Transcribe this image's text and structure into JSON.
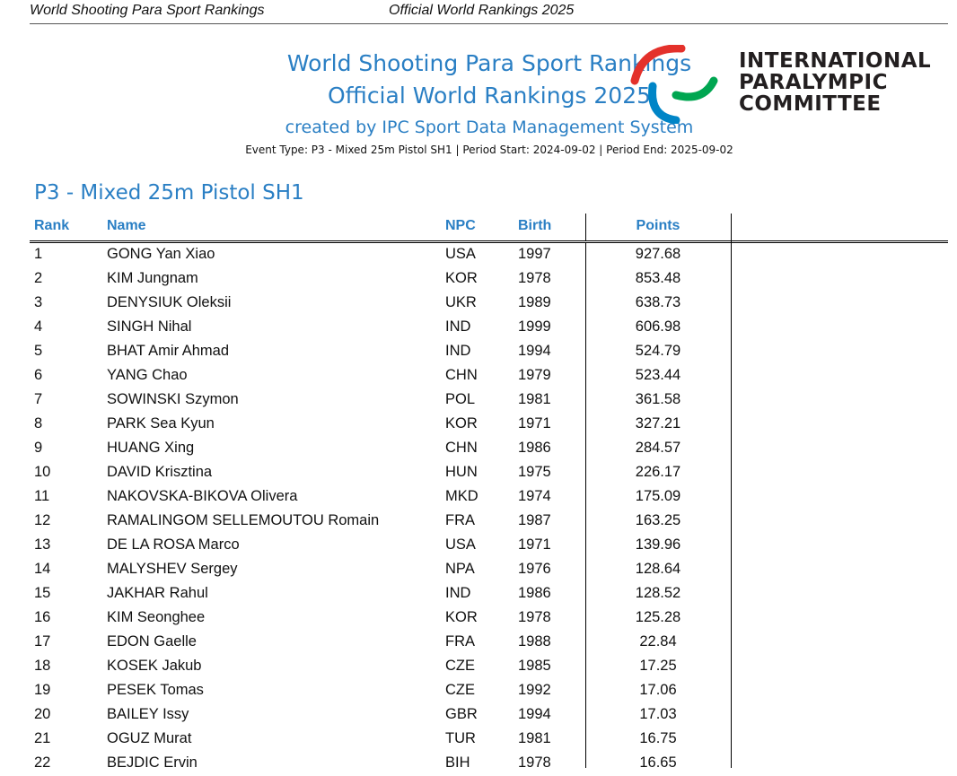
{
  "running_header": {
    "left": "World Shooting Para Sport Rankings",
    "right": "Official World Rankings 2025"
  },
  "title": {
    "line1": "World Shooting Para Sport Rankings",
    "line2": "Official World Rankings 2025",
    "line3": "created by IPC Sport Data Management System",
    "event_info": "Event Type: P3 - Mixed 25m Pistol SH1 | Period Start: 2024-09-02 | Period End: 2025-09-02"
  },
  "logo": {
    "name": "agitos-logo",
    "lines": [
      "INTERNATIONAL",
      "PARALYMPIC",
      "COMMITTEE"
    ],
    "colors": {
      "red": "#e4312b",
      "blue": "#0085c7",
      "green": "#00a651"
    }
  },
  "section_title": "P3 - Mixed 25m Pistol SH1",
  "table": {
    "headers": {
      "rank": "Rank",
      "name": "Name",
      "npc": "NPC",
      "birth": "Birth",
      "points": "Points"
    },
    "rows": [
      {
        "rank": "1",
        "name": "GONG Yan Xiao",
        "npc": "USA",
        "birth": "1997",
        "points": "927.68"
      },
      {
        "rank": "2",
        "name": "KIM Jungnam",
        "npc": "KOR",
        "birth": "1978",
        "points": "853.48"
      },
      {
        "rank": "3",
        "name": "DENYSIUK Oleksii",
        "npc": "UKR",
        "birth": "1989",
        "points": "638.73"
      },
      {
        "rank": "4",
        "name": "SINGH Nihal",
        "npc": "IND",
        "birth": "1999",
        "points": "606.98"
      },
      {
        "rank": "5",
        "name": "BHAT Amir Ahmad",
        "npc": "IND",
        "birth": "1994",
        "points": "524.79"
      },
      {
        "rank": "6",
        "name": "YANG Chao",
        "npc": "CHN",
        "birth": "1979",
        "points": "523.44"
      },
      {
        "rank": "7",
        "name": "SOWINSKI Szymon",
        "npc": "POL",
        "birth": "1981",
        "points": "361.58"
      },
      {
        "rank": "8",
        "name": "PARK Sea Kyun",
        "npc": "KOR",
        "birth": "1971",
        "points": "327.21"
      },
      {
        "rank": "9",
        "name": "HUANG Xing",
        "npc": "CHN",
        "birth": "1986",
        "points": "284.57"
      },
      {
        "rank": "10",
        "name": "DAVID Krisztina",
        "npc": "HUN",
        "birth": "1975",
        "points": "226.17"
      },
      {
        "rank": "11",
        "name": "NAKOVSKA-BIKOVA Olivera",
        "npc": "MKD",
        "birth": "1974",
        "points": "175.09"
      },
      {
        "rank": "12",
        "name": "RAMALINGOM SELLEMOUTOU Romain",
        "npc": "FRA",
        "birth": "1987",
        "points": "163.25"
      },
      {
        "rank": "13",
        "name": "DE LA ROSA Marco",
        "npc": "USA",
        "birth": "1971",
        "points": "139.96"
      },
      {
        "rank": "14",
        "name": "MALYSHEV Sergey",
        "npc": "NPA",
        "birth": "1976",
        "points": "128.64"
      },
      {
        "rank": "15",
        "name": "JAKHAR Rahul",
        "npc": "IND",
        "birth": "1986",
        "points": "128.52"
      },
      {
        "rank": "16",
        "name": "KIM Seonghee",
        "npc": "KOR",
        "birth": "1978",
        "points": "125.28"
      },
      {
        "rank": "17",
        "name": "EDON Gaelle",
        "npc": "FRA",
        "birth": "1988",
        "points": "22.84"
      },
      {
        "rank": "18",
        "name": "KOSEK Jakub",
        "npc": "CZE",
        "birth": "1985",
        "points": "17.25"
      },
      {
        "rank": "19",
        "name": "PESEK Tomas",
        "npc": "CZE",
        "birth": "1992",
        "points": "17.06"
      },
      {
        "rank": "20",
        "name": "BAILEY Issy",
        "npc": "GBR",
        "birth": "1994",
        "points": "17.03"
      },
      {
        "rank": "21",
        "name": "OGUZ Murat",
        "npc": "TUR",
        "birth": "1981",
        "points": "16.75"
      },
      {
        "rank": "22",
        "name": "BEJDIC Ervin",
        "npc": "BIH",
        "birth": "1978",
        "points": "16.65"
      }
    ]
  }
}
